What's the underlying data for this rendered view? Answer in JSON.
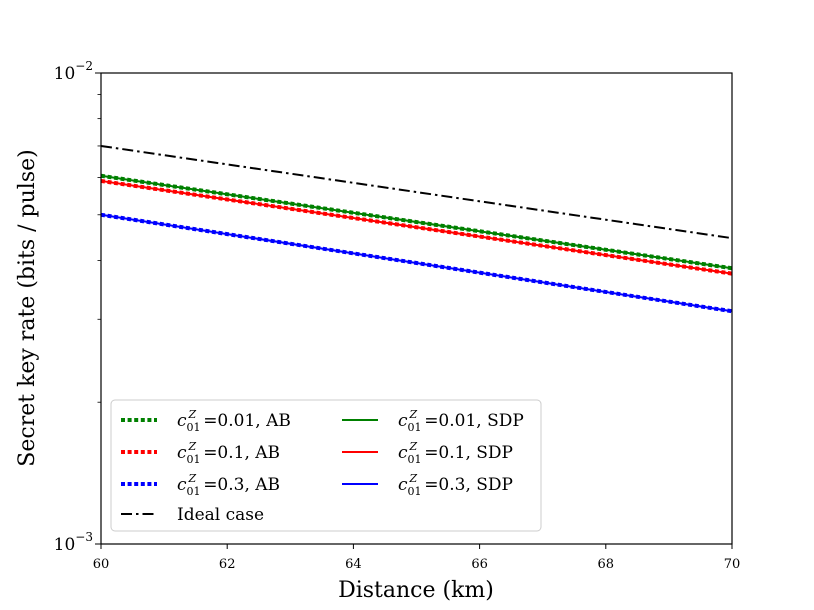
{
  "chart_data": {
    "type": "line",
    "title": "",
    "xlabel": "Distance (km)",
    "ylabel": "Secret key rate (bits / pulse)",
    "xlim": [
      60,
      70
    ],
    "ylim": [
      0.001,
      0.01
    ],
    "yscale": "log",
    "x_ticks": [
      60,
      62,
      64,
      66,
      68,
      70
    ],
    "y_ticks": [
      {
        "value": 0.01,
        "base": "10",
        "exp": "−2"
      },
      {
        "value": 0.001,
        "base": "10",
        "exp": "−3"
      }
    ],
    "legend_position": "lower-left",
    "series": [
      {
        "name": "c_01^Z =0.01, AB",
        "prefix": "c",
        "sub": "01",
        "sup": "Z",
        "suffix": "=0.01, AB",
        "color": "#008000",
        "style": "dotted",
        "x": [
          60,
          70
        ],
        "y": [
          0.00605,
          0.00385
        ]
      },
      {
        "name": "c_01^Z =0.1, AB",
        "prefix": "c",
        "sub": "01",
        "sup": "Z",
        "suffix": "=0.1, AB",
        "color": "#ff0000",
        "style": "dotted",
        "x": [
          60,
          70
        ],
        "y": [
          0.0059,
          0.00375
        ]
      },
      {
        "name": "c_01^Z =0.3, AB",
        "prefix": "c",
        "sub": "01",
        "sup": "Z",
        "suffix": "=0.3, AB",
        "color": "#0000ff",
        "style": "dotted",
        "x": [
          60,
          70
        ],
        "y": [
          0.005,
          0.00312
        ]
      },
      {
        "name": "Ideal case",
        "prefix": "",
        "sub": "",
        "sup": "",
        "suffix": "Ideal case",
        "color": "#000000",
        "style": "dashdot",
        "x": [
          60,
          70
        ],
        "y": [
          0.007,
          0.00446
        ]
      },
      {
        "name": "c_01^Z =0.01, SDP",
        "prefix": "c",
        "sub": "01",
        "sup": "Z",
        "suffix": "=0.01, SDP",
        "color": "#008000",
        "style": "solid",
        "x": [
          60,
          70
        ],
        "y": [
          0.00605,
          0.00385
        ]
      },
      {
        "name": "c_01^Z =0.1, SDP",
        "prefix": "c",
        "sub": "01",
        "sup": "Z",
        "suffix": "=0.1, SDP",
        "color": "#ff0000",
        "style": "solid",
        "x": [
          60,
          70
        ],
        "y": [
          0.0059,
          0.00375
        ]
      },
      {
        "name": "c_01^Z =0.3, SDP",
        "prefix": "c",
        "sub": "01",
        "sup": "Z",
        "suffix": "=0.3, SDP",
        "color": "#0000ff",
        "style": "solid",
        "x": [
          60,
          70
        ],
        "y": [
          0.005,
          0.00312
        ]
      }
    ]
  }
}
